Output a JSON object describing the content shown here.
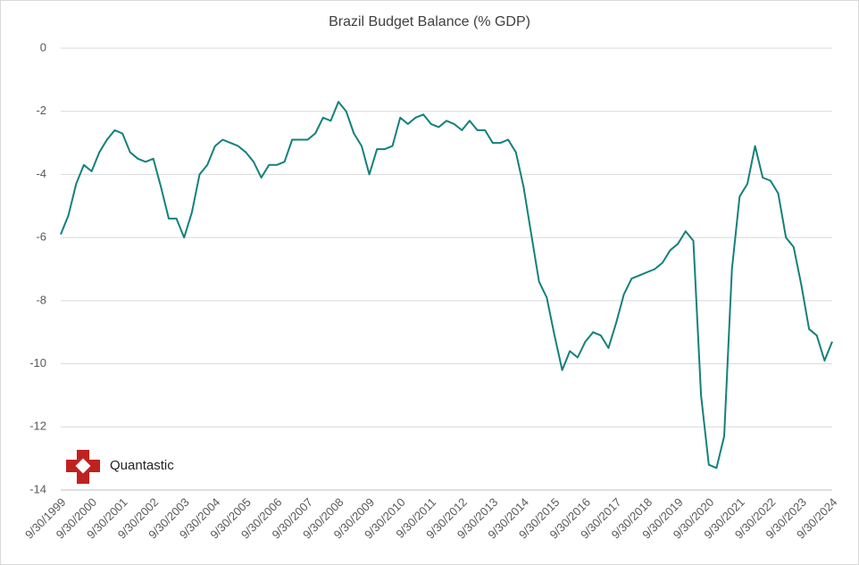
{
  "chart_data": {
    "type": "line",
    "title": "Brazil Budget Balance (% GDP)",
    "brand": "Quantastic",
    "categories": [
      "9/30/1999",
      null,
      null,
      null,
      "9/30/2000",
      null,
      null,
      null,
      "9/30/2001",
      null,
      null,
      null,
      "9/30/2002",
      null,
      null,
      null,
      "9/30/2003",
      null,
      null,
      null,
      "9/30/2004",
      null,
      null,
      null,
      "9/30/2005",
      null,
      null,
      null,
      "9/30/2006",
      null,
      null,
      null,
      "9/30/2007",
      null,
      null,
      null,
      "9/30/2008",
      null,
      null,
      null,
      "9/30/2009",
      null,
      null,
      null,
      "9/30/2010",
      null,
      null,
      null,
      "9/30/2011",
      null,
      null,
      null,
      "9/30/2012",
      null,
      null,
      null,
      "9/30/2013",
      null,
      null,
      null,
      "9/30/2014",
      null,
      null,
      null,
      "9/30/2015",
      null,
      null,
      null,
      "9/30/2016",
      null,
      null,
      null,
      "9/30/2017",
      null,
      null,
      null,
      "9/30/2018",
      null,
      null,
      null,
      "9/30/2019",
      null,
      null,
      null,
      "9/30/2020",
      null,
      null,
      null,
      "9/30/2021",
      null,
      null,
      null,
      "9/30/2022",
      null,
      null,
      null,
      "9/30/2023",
      null,
      null,
      null,
      "9/30/2024"
    ],
    "series": [
      {
        "name": "Brazil Budget Balance",
        "color": "#13817a",
        "values": [
          -5.9,
          -5.3,
          -4.3,
          -3.7,
          -3.9,
          -3.3,
          -2.9,
          -2.6,
          -2.7,
          -3.3,
          -3.5,
          -3.6,
          -3.5,
          -4.4,
          -5.4,
          -5.4,
          -6.0,
          -5.2,
          -4.0,
          -3.7,
          -3.1,
          -2.9,
          -3.0,
          -3.1,
          -3.3,
          -3.6,
          -4.1,
          -3.7,
          -3.7,
          -3.6,
          -2.9,
          -2.9,
          -2.9,
          -2.7,
          -2.2,
          -2.3,
          -1.7,
          -2.0,
          -2.7,
          -3.1,
          -4.0,
          -3.2,
          -3.2,
          -3.1,
          -2.2,
          -2.4,
          -2.2,
          -2.1,
          -2.4,
          -2.5,
          -2.3,
          -2.4,
          -2.6,
          -2.3,
          -2.6,
          -2.6,
          -3.0,
          -3.0,
          -2.9,
          -3.3,
          -4.4,
          -5.9,
          -7.4,
          -7.9,
          -9.1,
          -10.2,
          -9.6,
          -9.8,
          -9.3,
          -9.0,
          -9.1,
          -9.5,
          -8.7,
          -7.8,
          -7.3,
          -7.2,
          -7.1,
          -7.0,
          -6.8,
          -6.4,
          -6.2,
          -5.8,
          -6.1,
          -11.0,
          -13.2,
          -13.3,
          -12.3,
          -7.0,
          -4.7,
          -4.3,
          -3.1,
          -4.1,
          -4.2,
          -4.6,
          -6.0,
          -6.3,
          -7.5,
          -8.9,
          -9.1,
          -9.9,
          -9.3
        ]
      }
    ],
    "ylim": [
      -14,
      0
    ],
    "yticks": [
      0,
      -2,
      -4,
      -6,
      -8,
      -10,
      -12,
      -14
    ],
    "grid": true
  }
}
